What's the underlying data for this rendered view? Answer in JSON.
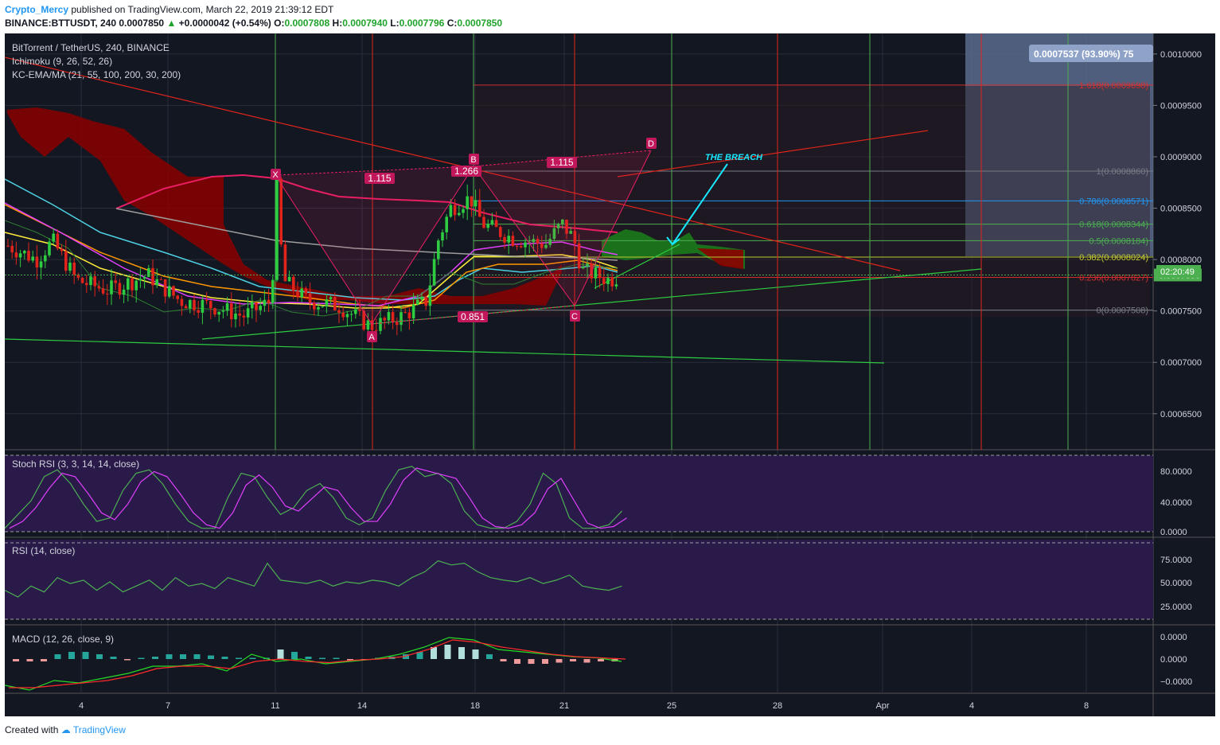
{
  "header": {
    "author": "Crypto_Mercy",
    "published_text": "published on TradingView.com, March 22, 2019 21:39:12 EDT",
    "symbol": "BINANCE:BTTUSDT, 240",
    "price": "0.0007850",
    "change_arrow": "▲",
    "change": "+0.0000042 (+0.54%)",
    "o_label": "O:",
    "o_value": "0.0007808",
    "h_label": "H:",
    "h_value": "0.0007940",
    "l_label": "L:",
    "l_value": "0.0007796",
    "c_label": "C:",
    "c_value": "0.0007850"
  },
  "footer": {
    "created_with": "Created with",
    "brand": "TradingView"
  },
  "legend": {
    "pair": "BitTorrent / TetherUS, 240, BINANCE",
    "ichimoku": "Ichimoku (9, 26, 52, 26)",
    "kc": "KC-EMA/MA (21, 55, 100, 200, 30, 200)",
    "stoch": "Stoch RSI (3, 3, 14, 14, close)",
    "rsi": "RSI (14, close)",
    "macd": "MACD (12, 26, close, 9)"
  },
  "annotations": {
    "measure": "0.0007537 (93.90%) 75",
    "breach": "THE BREACH",
    "current_price": "0.0007850",
    "countdown": "02:20:49",
    "pattern_points": [
      "X",
      "A",
      "B",
      "C",
      "D"
    ],
    "ratios": [
      "1.115",
      "1.266",
      "1.115",
      "0.851"
    ]
  },
  "fib_levels": [
    {
      "ratio": "1",
      "price": "0.0008860",
      "color": "#787b86"
    },
    {
      "ratio": "0.786",
      "price": "0.0008571",
      "color": "#2196f3"
    },
    {
      "ratio": "0.618",
      "price": "0.0008344",
      "color": "#4caf50"
    },
    {
      "ratio": "0.5",
      "price": "0.0008184",
      "color": "#4caf50"
    },
    {
      "ratio": "0.382",
      "price": "0.0008024",
      "color": "#c0ca33"
    },
    {
      "ratio": "0.236",
      "price": "0.0007827",
      "color": "#d32f2f"
    },
    {
      "ratio": "0",
      "price": "0.0007508",
      "color": "#787b86"
    }
  ],
  "fib_extra": {
    "label": "1.618(0.0009698)",
    "color": "#d32f2f"
  },
  "colors": {
    "background": "#131722",
    "candle_up": "#2ecc40",
    "candle_down": "#e0241b",
    "cloud_bear": "#8b0000",
    "cloud_bull": "#1b7a1b",
    "ema21": "#ffeb3b",
    "ema55": "#ff9800",
    "ema100": "#4dd0e1",
    "ma200": "#e040fb",
    "pattern": "#e91e63",
    "breach_arrow": "#18e8ff",
    "stoch_k": "#4caf50",
    "stoch_d": "#e040fb",
    "panel_bg": "#2a1a4a",
    "macd_line": "#26d926",
    "signal_line": "#ff2a2a"
  },
  "chart_data": {
    "type": "candlestick",
    "main": {
      "y_ticks": [
        "0.0010000",
        "0.0009500",
        "0.0009000",
        "0.0008500",
        "0.0008000",
        "0.0007500",
        "0.0007000",
        "0.0006500"
      ],
      "ylim": [
        0.000615,
        0.00102
      ],
      "x_ticks": [
        "4",
        "7",
        "11",
        "14",
        "18",
        "21",
        "25",
        "28",
        "Apr",
        "4",
        "8"
      ],
      "ichimoku": "Ichimoku (9, 26, 52, 26)",
      "candles_approx": "4h candles Mar 2 - Mar 22, 2019; range 0.000720 - 0.000870",
      "last_close": 0.000785
    },
    "stoch_rsi": {
      "y_ticks": [
        "80.0000",
        "40.0000",
        "0.0000"
      ],
      "ylim": [
        0,
        100
      ]
    },
    "rsi": {
      "y_ticks": [
        "75.0000",
        "50.0000",
        "25.0000"
      ],
      "ylim": [
        0,
        100
      ]
    },
    "macd": {
      "y_ticks": [
        "0.0000",
        "0.0000",
        "−0.0000"
      ]
    }
  }
}
